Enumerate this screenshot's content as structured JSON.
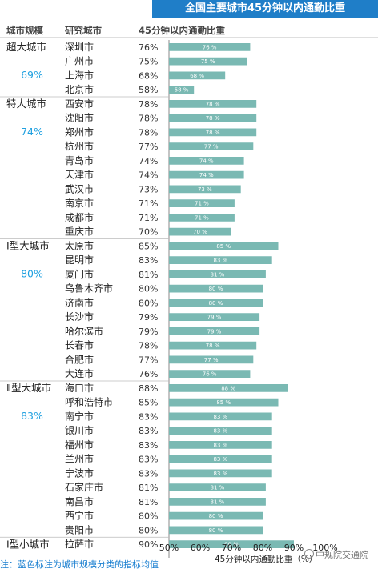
{
  "title": "全国主要城市45分钟以内通勤比重",
  "headers": {
    "scale": "城市规模",
    "city": "研究城市",
    "value": "45分钟以内通勤比重"
  },
  "footnote": "注：蓝色标注为城市规模分类的指标均值",
  "watermark": "中规院交通院",
  "colors": {
    "bar": "#7ab9b3",
    "avg": "#1fa0e0",
    "title_bg": "#1f7ec8"
  },
  "groups": [
    {
      "name": "超大城市",
      "avg": "69%",
      "start": 0,
      "end": 3
    },
    {
      "name": "特大城市",
      "avg": "74%",
      "start": 4,
      "end": 13
    },
    {
      "name": "Ⅰ型大城市",
      "avg": "80%",
      "start": 14,
      "end": 23
    },
    {
      "name": "Ⅱ型大城市",
      "avg": "83%",
      "start": 24,
      "end": 34
    },
    {
      "name": "Ⅰ型小城市",
      "avg": "",
      "start": 35,
      "end": 35
    }
  ],
  "chart_data": {
    "type": "bar",
    "orientation": "horizontal",
    "title": "全国主要城市45分钟以内通勤比重",
    "xlabel": "45分钟以内通勤比重（%）",
    "xlim": [
      50,
      100
    ],
    "xticks": [
      "50%",
      "60%",
      "70%",
      "80%",
      "90%",
      "100%"
    ],
    "categories": [
      "深圳市",
      "广州市",
      "上海市",
      "北京市",
      "西安市",
      "沈阳市",
      "郑州市",
      "杭州市",
      "青岛市",
      "天津市",
      "武汉市",
      "南京市",
      "成都市",
      "重庆市",
      "太原市",
      "昆明市",
      "厦门市",
      "乌鲁木齐市",
      "济南市",
      "长沙市",
      "哈尔滨市",
      "长春市",
      "合肥市",
      "大连市",
      "海口市",
      "呼和浩特市",
      "南宁市",
      "银川市",
      "福州市",
      "兰州市",
      "宁波市",
      "石家庄市",
      "南昌市",
      "西宁市",
      "贵阳市",
      "拉萨市"
    ],
    "values": [
      76,
      75,
      68,
      58,
      78,
      78,
      78,
      77,
      74,
      74,
      73,
      71,
      71,
      70,
      85,
      83,
      81,
      80,
      80,
      79,
      79,
      78,
      77,
      76,
      88,
      85,
      83,
      83,
      83,
      83,
      83,
      81,
      81,
      80,
      80,
      90
    ],
    "value_labels": [
      "76%",
      "75%",
      "68%",
      "58%",
      "78%",
      "78%",
      "78%",
      "77%",
      "74%",
      "74%",
      "73%",
      "71%",
      "71%",
      "70%",
      "85%",
      "83%",
      "81%",
      "80%",
      "80%",
      "79%",
      "79%",
      "78%",
      "77%",
      "76%",
      "88%",
      "85%",
      "83%",
      "83%",
      "83%",
      "83%",
      "83%",
      "81%",
      "81%",
      "80%",
      "80%",
      "90%"
    ],
    "bar_labels": [
      "76 %",
      "75 %",
      "68 %",
      "58 %",
      "78 %",
      "78 %",
      "78 %",
      "77 %",
      "74 %",
      "74 %",
      "73 %",
      "71 %",
      "71 %",
      "70 %",
      "85 %",
      "83 %",
      "81 %",
      "80 %",
      "80 %",
      "79 %",
      "79 %",
      "78 %",
      "77 %",
      "76 %",
      "88 %",
      "85 %",
      "83 %",
      "83 %",
      "83 %",
      "83 %",
      "83 %",
      "81 %",
      "81 %",
      "80 %",
      "80 %",
      "90 %"
    ]
  }
}
